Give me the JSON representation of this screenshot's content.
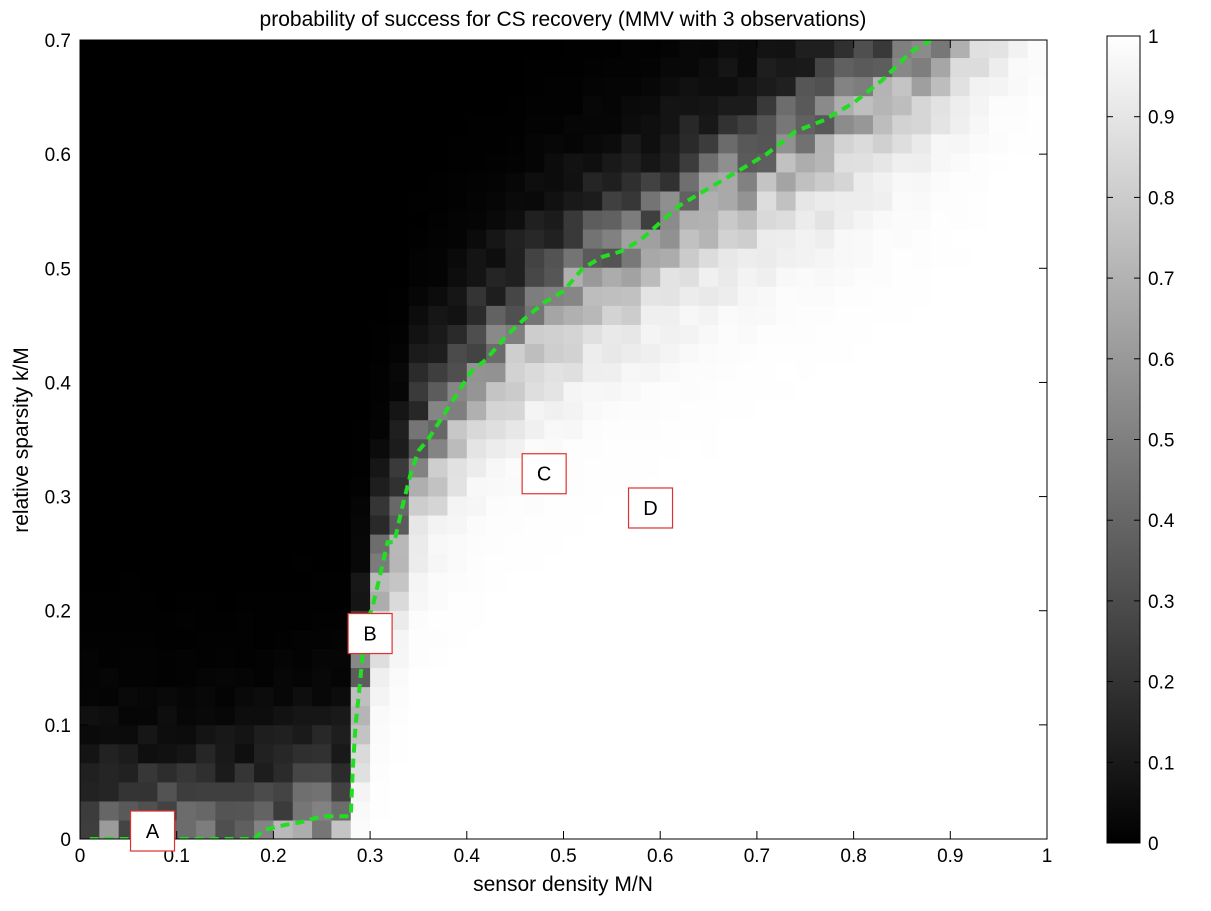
{
  "chart_data": {
    "type": "heatmap",
    "title": "probability of success for CS recovery (MMV with 3 observations)",
    "xlabel": "sensor density M/N",
    "ylabel": "relative sparsity k/M",
    "xlim": [
      0,
      1
    ],
    "ylim": [
      0,
      0.7
    ],
    "x_ticks": [
      "0",
      "0.1",
      "0.2",
      "0.3",
      "0.4",
      "0.5",
      "0.6",
      "0.7",
      "0.8",
      "0.9",
      "1"
    ],
    "y_ticks": [
      "0",
      "0.1",
      "0.2",
      "0.3",
      "0.4",
      "0.5",
      "0.6",
      "0.7"
    ],
    "grid": false,
    "colorscale": "gray",
    "colorbar": {
      "range": [
        0,
        1
      ],
      "ticks": [
        "0",
        "0.1",
        "0.2",
        "0.3",
        "0.4",
        "0.5",
        "0.6",
        "0.7",
        "0.8",
        "0.9",
        "1"
      ]
    },
    "grid_resolution": {
      "x_step": 0.02,
      "y_step": 0.0167
    },
    "boundary_series": {
      "color": "#22dd22",
      "style": "dashed",
      "x": [
        0.01,
        0.05,
        0.1,
        0.15,
        0.18,
        0.19,
        0.21,
        0.23,
        0.25,
        0.27,
        0.28,
        0.282,
        0.285,
        0.29,
        0.293,
        0.297,
        0.303,
        0.31,
        0.318,
        0.325,
        0.333,
        0.342,
        0.35,
        0.36,
        0.375,
        0.39,
        0.405,
        0.42,
        0.44,
        0.46,
        0.48,
        0.5,
        0.52,
        0.54,
        0.56,
        0.58,
        0.6,
        0.62,
        0.65,
        0.68,
        0.71,
        0.74,
        0.77,
        0.8,
        0.83,
        0.86,
        0.88
      ],
      "y": [
        0.0,
        0.0,
        0.0,
        0.0,
        0.0,
        0.008,
        0.012,
        0.015,
        0.02,
        0.02,
        0.02,
        0.06,
        0.1,
        0.14,
        0.17,
        0.19,
        0.205,
        0.23,
        0.26,
        0.26,
        0.29,
        0.32,
        0.34,
        0.35,
        0.37,
        0.39,
        0.41,
        0.42,
        0.44,
        0.456,
        0.47,
        0.48,
        0.5,
        0.51,
        0.515,
        0.525,
        0.54,
        0.555,
        0.57,
        0.585,
        0.6,
        0.62,
        0.63,
        0.645,
        0.665,
        0.69,
        0.7
      ]
    },
    "annotations": [
      {
        "label": "A",
        "x": 0.075,
        "y": 0.007
      },
      {
        "label": "B",
        "x": 0.3,
        "y": 0.18
      },
      {
        "label": "C",
        "x": 0.48,
        "y": 0.32
      },
      {
        "label": "D",
        "x": 0.59,
        "y": 0.29
      }
    ]
  }
}
